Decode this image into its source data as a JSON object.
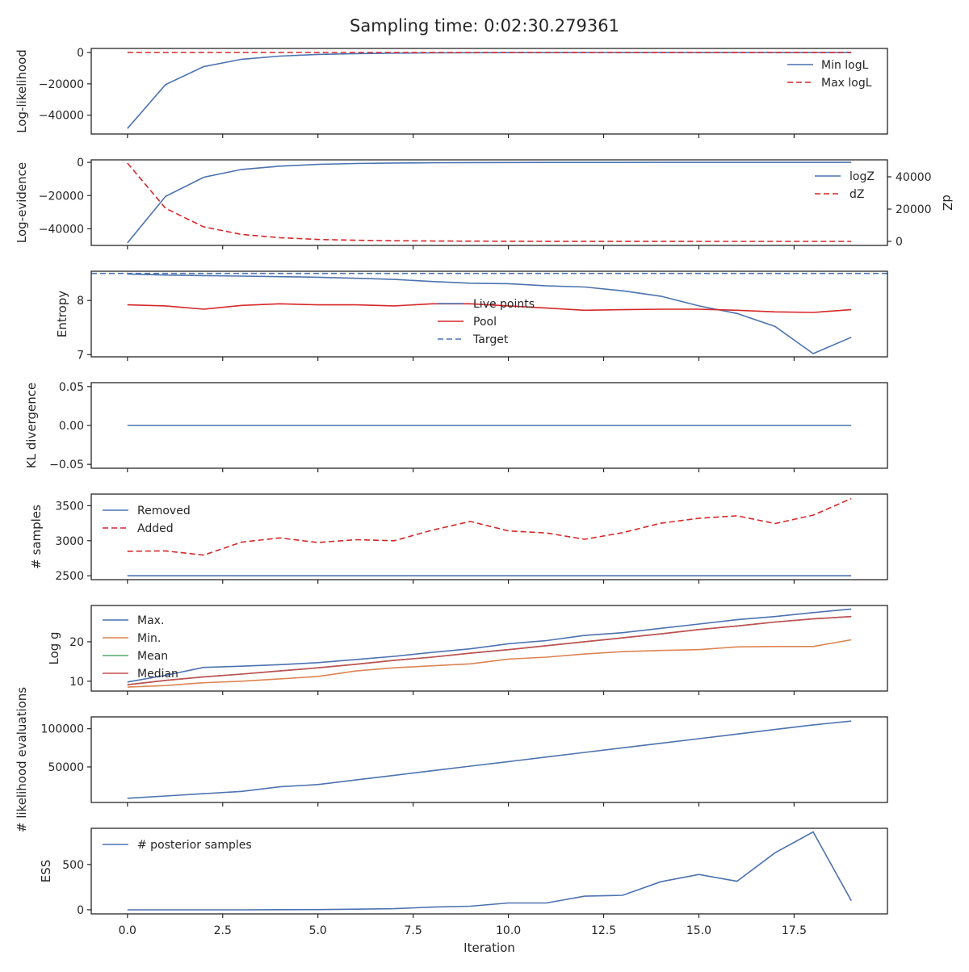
{
  "title": "Sampling time: 0:02:30.279361",
  "x_axis": {
    "label": "Iteration",
    "range": [
      -0.95,
      19.95
    ],
    "ticks": [
      0,
      2.5,
      5,
      7.5,
      10,
      12.5,
      15,
      17.5
    ],
    "tick_labels": [
      "0.0",
      "2.5",
      "5.0",
      "7.5",
      "10.0",
      "12.5",
      "15.0",
      "17.5"
    ]
  },
  "colors": {
    "blue": "#4c72b0",
    "red": "#d62728",
    "orange": "#dd8452",
    "green": "#55a868",
    "median_red": "#c44e52",
    "target": "#4c72b0"
  },
  "chart_data": [
    {
      "type": "line",
      "ylabel": "Log-likelihood",
      "ylim": [
        -52000,
        2600
      ],
      "yticks": [
        0,
        -20000,
        -40000
      ],
      "ytick_labels": [
        "0",
        "−20000",
        "−40000"
      ],
      "legend_position": "top-right",
      "x": [
        0,
        1,
        2,
        3,
        4,
        5,
        6,
        7,
        8,
        9,
        10,
        11,
        12,
        13,
        14,
        15,
        16,
        17,
        18,
        19
      ],
      "series": [
        {
          "name": "Min logL",
          "color": "#4c72b0",
          "dash": "solid",
          "values": [
            -48500,
            -20500,
            -9000,
            -4300,
            -2300,
            -1200,
            -700,
            -400,
            -250,
            -150,
            -100,
            -70,
            -50,
            -35,
            -25,
            -20,
            -15,
            -12,
            -10,
            -8
          ]
        },
        {
          "name": "Max logL",
          "color": "#d62728",
          "dash": "dashed",
          "values": [
            0,
            0,
            0,
            0,
            0,
            0,
            0,
            0,
            0,
            0,
            0,
            0,
            0,
            0,
            0,
            0,
            0,
            0,
            0,
            0
          ]
        }
      ]
    },
    {
      "type": "line",
      "ylabel": "Log-evidence",
      "ylim": [
        -50000,
        1500
      ],
      "yticks": [
        0,
        -20000,
        -40000
      ],
      "ytick_labels": [
        "0",
        "−20000",
        "−40000"
      ],
      "y2label": "dZ",
      "y2lim": [
        -2500,
        50500
      ],
      "y2ticks": [
        0,
        20000,
        40000
      ],
      "y2tick_labels": [
        "0",
        "20000",
        "40000"
      ],
      "legend_position": "top-right",
      "x": [
        0,
        1,
        2,
        3,
        4,
        5,
        6,
        7,
        8,
        9,
        10,
        11,
        12,
        13,
        14,
        15,
        16,
        17,
        18,
        19
      ],
      "series": [
        {
          "name": "logZ",
          "color": "#4c72b0",
          "dash": "solid",
          "axis": "left",
          "values": [
            -48500,
            -20500,
            -9000,
            -4300,
            -2300,
            -1200,
            -700,
            -400,
            -250,
            -150,
            -100,
            -70,
            -50,
            -35,
            -25,
            -20,
            -15,
            -12,
            -10,
            -8
          ]
        },
        {
          "name": "dZ",
          "color": "#d62728",
          "dash": "dashed",
          "axis": "right",
          "values": [
            48500,
            20500,
            9000,
            4300,
            2300,
            1200,
            700,
            400,
            250,
            150,
            100,
            70,
            50,
            35,
            25,
            20,
            15,
            12,
            10,
            8
          ]
        }
      ]
    },
    {
      "type": "line",
      "ylabel": "Entropy",
      "ylim": [
        6.96,
        8.54
      ],
      "yticks": [
        7,
        8
      ],
      "ytick_labels": [
        "7",
        "8"
      ],
      "legend_position": "center",
      "x": [
        0,
        1,
        2,
        3,
        4,
        5,
        6,
        7,
        8,
        9,
        10,
        11,
        12,
        13,
        14,
        15,
        16,
        17,
        18,
        19
      ],
      "series": [
        {
          "name": "Live points",
          "color": "#4c72b0",
          "dash": "solid",
          "values": [
            8.49,
            8.47,
            8.46,
            8.45,
            8.44,
            8.43,
            8.41,
            8.39,
            8.35,
            8.32,
            8.31,
            8.27,
            8.25,
            8.18,
            8.08,
            7.9,
            7.76,
            7.52,
            7.02,
            7.32
          ]
        },
        {
          "name": "Pool",
          "color": "#d62728",
          "dash": "solid",
          "values": [
            7.92,
            7.9,
            7.84,
            7.91,
            7.94,
            7.92,
            7.92,
            7.9,
            7.94,
            7.94,
            7.9,
            7.86,
            7.82,
            7.83,
            7.84,
            7.84,
            7.82,
            7.79,
            7.78,
            7.83
          ]
        },
        {
          "name": "Target",
          "color": "#4c72b0",
          "dash": "dashed",
          "hline": 8.5
        }
      ]
    },
    {
      "type": "line",
      "ylabel": "KL divergence",
      "ylim": [
        -0.055,
        0.055
      ],
      "yticks": [
        0.05,
        0.0,
        -0.05
      ],
      "ytick_labels": [
        "0.05",
        "0.00",
        "−0.05"
      ],
      "x": [
        0,
        1,
        2,
        3,
        4,
        5,
        6,
        7,
        8,
        9,
        10,
        11,
        12,
        13,
        14,
        15,
        16,
        17,
        18,
        19
      ],
      "series": [
        {
          "color": "#4c72b0",
          "dash": "solid",
          "values": [
            0,
            0,
            0,
            0,
            0,
            0,
            0,
            0,
            0,
            0,
            0,
            0,
            0,
            0,
            0,
            0,
            0,
            0,
            0,
            0
          ]
        }
      ]
    },
    {
      "type": "line",
      "ylabel": "# samples",
      "ylim": [
        2445,
        3665
      ],
      "yticks": [
        3500,
        3000,
        2500
      ],
      "ytick_labels": [
        "3500",
        "3000",
        "2500"
      ],
      "legend_position": "top-left",
      "x": [
        0,
        1,
        2,
        3,
        4,
        5,
        6,
        7,
        8,
        9,
        10,
        11,
        12,
        13,
        14,
        15,
        16,
        17,
        18,
        19
      ],
      "series": [
        {
          "name": "Removed",
          "color": "#4c72b0",
          "dash": "solid",
          "values": [
            2500,
            2500,
            2500,
            2500,
            2500,
            2500,
            2500,
            2500,
            2500,
            2500,
            2500,
            2500,
            2500,
            2500,
            2500,
            2500,
            2500,
            2500,
            2500,
            2500
          ]
        },
        {
          "name": "Added",
          "color": "#d62728",
          "dash": "dashed",
          "values": [
            2850,
            2855,
            2795,
            2980,
            3040,
            2975,
            3015,
            3000,
            3150,
            3275,
            3140,
            3110,
            3020,
            3115,
            3250,
            3320,
            3355,
            3245,
            3365,
            3600
          ]
        }
      ]
    },
    {
      "type": "line",
      "ylabel": "Log g",
      "ylim": [
        7.5,
        29.2
      ],
      "yticks": [
        20,
        10
      ],
      "ytick_labels": [
        "20",
        "10"
      ],
      "legend_position": "top-left",
      "x": [
        0,
        1,
        2,
        3,
        4,
        5,
        6,
        7,
        8,
        9,
        10,
        11,
        12,
        13,
        14,
        15,
        16,
        17,
        18,
        19
      ],
      "series": [
        {
          "name": "Max.",
          "color": "#4c72b0",
          "dash": "solid",
          "values": [
            9.8,
            11.5,
            13.5,
            13.8,
            14.2,
            14.7,
            15.5,
            16.3,
            17.3,
            18.2,
            19.5,
            20.3,
            21.6,
            22.3,
            23.4,
            24.5,
            25.6,
            26.4,
            27.4,
            28.3
          ]
        },
        {
          "name": "Min.",
          "color": "#dd8452",
          "dash": "solid",
          "values": [
            8.5,
            8.9,
            9.6,
            10.0,
            10.6,
            11.2,
            12.6,
            13.4,
            13.9,
            14.4,
            15.6,
            16.1,
            16.9,
            17.5,
            17.8,
            18.0,
            18.7,
            18.8,
            18.8,
            20.5
          ]
        },
        {
          "name": "Mean",
          "color": "#55a868",
          "dash": "solid",
          "values": [
            9.1,
            10.2,
            11.1,
            11.8,
            12.6,
            13.4,
            14.3,
            15.3,
            16.1,
            17.1,
            18.0,
            19.0,
            20.0,
            21.0,
            22.0,
            23.1,
            24.0,
            25.0,
            25.8,
            26.4
          ]
        },
        {
          "name": "Median",
          "color": "#c44e52",
          "dash": "solid",
          "values": [
            9.1,
            10.2,
            11.1,
            11.8,
            12.6,
            13.4,
            14.3,
            15.3,
            16.1,
            17.1,
            18.0,
            19.0,
            20.0,
            21.0,
            22.0,
            23.1,
            24.0,
            25.0,
            25.8,
            26.4
          ]
        }
      ]
    },
    {
      "type": "line",
      "ylabel": "# likelihood evaluations",
      "ylim": [
        3500,
        115500
      ],
      "yticks": [
        100000,
        50000
      ],
      "ytick_labels": [
        "100000",
        "50000"
      ],
      "x": [
        0,
        1,
        2,
        3,
        4,
        5,
        6,
        7,
        8,
        9,
        10,
        11,
        12,
        13,
        14,
        15,
        16,
        17,
        18,
        19
      ],
      "series": [
        {
          "color": "#4c72b0",
          "dash": "solid",
          "values": [
            9000,
            12000,
            15000,
            18000,
            24000,
            27000,
            33000,
            39000,
            45000,
            51000,
            57000,
            63000,
            69000,
            75000,
            81000,
            87000,
            93000,
            99000,
            105000,
            110000
          ]
        }
      ]
    },
    {
      "type": "line",
      "ylabel": "ESS",
      "ylim": [
        -45,
        900
      ],
      "yticks": [
        500,
        0
      ],
      "ytick_labels": [
        "500",
        "0"
      ],
      "legend_position": "top-left",
      "x": [
        0,
        1,
        2,
        3,
        4,
        5,
        6,
        7,
        8,
        9,
        10,
        11,
        12,
        13,
        14,
        15,
        16,
        17,
        18,
        19
      ],
      "series": [
        {
          "name": "# posterior samples",
          "color": "#4c72b0",
          "dash": "solid",
          "values": [
            0,
            0,
            0,
            0,
            1,
            2,
            7,
            12,
            30,
            40,
            75,
            75,
            150,
            160,
            310,
            390,
            315,
            630,
            860,
            100
          ]
        }
      ]
    }
  ]
}
